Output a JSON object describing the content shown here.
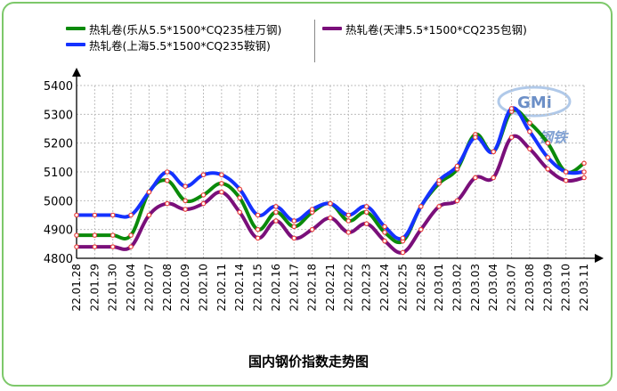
{
  "chart_data": {
    "type": "line",
    "title": "国内钢价指数走势图",
    "categories": [
      "22.01.28",
      "22.01.29",
      "22.01.30",
      "22.02.04",
      "22.02.07",
      "22.02.08",
      "22.02.09",
      "22.02.10",
      "22.02.11",
      "22.02.14",
      "22.02.15",
      "22.02.16",
      "22.02.17",
      "22.02.18",
      "22.02.21",
      "22.02.22",
      "22.02.23",
      "22.02.24",
      "22.02.25",
      "22.02.28",
      "22.03.01",
      "22.03.02",
      "22.03.03",
      "22.03.04",
      "22.03.07",
      "22.03.08",
      "22.03.09",
      "22.03.10",
      "22.03.11"
    ],
    "ylim": [
      4800,
      5400
    ],
    "yticks": [
      4800,
      4900,
      5000,
      5100,
      5200,
      5300,
      5400
    ],
    "grid": true,
    "legend_position": "top",
    "series": [
      {
        "name": "热轧卷(乐从5.5*1500*CQ235桂万钢)",
        "color": "#0a8a0a",
        "values": [
          4880,
          4880,
          4880,
          4880,
          5030,
          5070,
          5000,
          5020,
          5060,
          5010,
          4900,
          4960,
          4910,
          4960,
          4990,
          4930,
          4960,
          4890,
          4860,
          4980,
          5060,
          5110,
          5230,
          5170,
          5310,
          5270,
          5200,
          5100,
          5130
        ]
      },
      {
        "name": "热轧卷(上海5.5*1500*CQ235鞍钢)",
        "color": "#1432ff",
        "values": [
          4950,
          4950,
          4950,
          4950,
          5030,
          5100,
          5050,
          5090,
          5090,
          5040,
          4950,
          4980,
          4930,
          4970,
          4990,
          4950,
          4980,
          4910,
          4870,
          4980,
          5070,
          5120,
          5220,
          5170,
          5320,
          5240,
          5150,
          5100,
          5100
        ]
      },
      {
        "name": "热轧卷(天津5.5*1500*CQ235包钢)",
        "color": "#7a0f7a",
        "values": [
          4840,
          4840,
          4840,
          4840,
          4950,
          4990,
          4970,
          4990,
          5030,
          4960,
          4870,
          4930,
          4870,
          4900,
          4940,
          4890,
          4920,
          4860,
          4820,
          4900,
          4980,
          5000,
          5080,
          5080,
          5220,
          5180,
          5110,
          5070,
          5080
        ]
      }
    ],
    "marker_color": "#e8403c",
    "watermark": {
      "latin": "GMi",
      "cn": "钢铁"
    }
  }
}
